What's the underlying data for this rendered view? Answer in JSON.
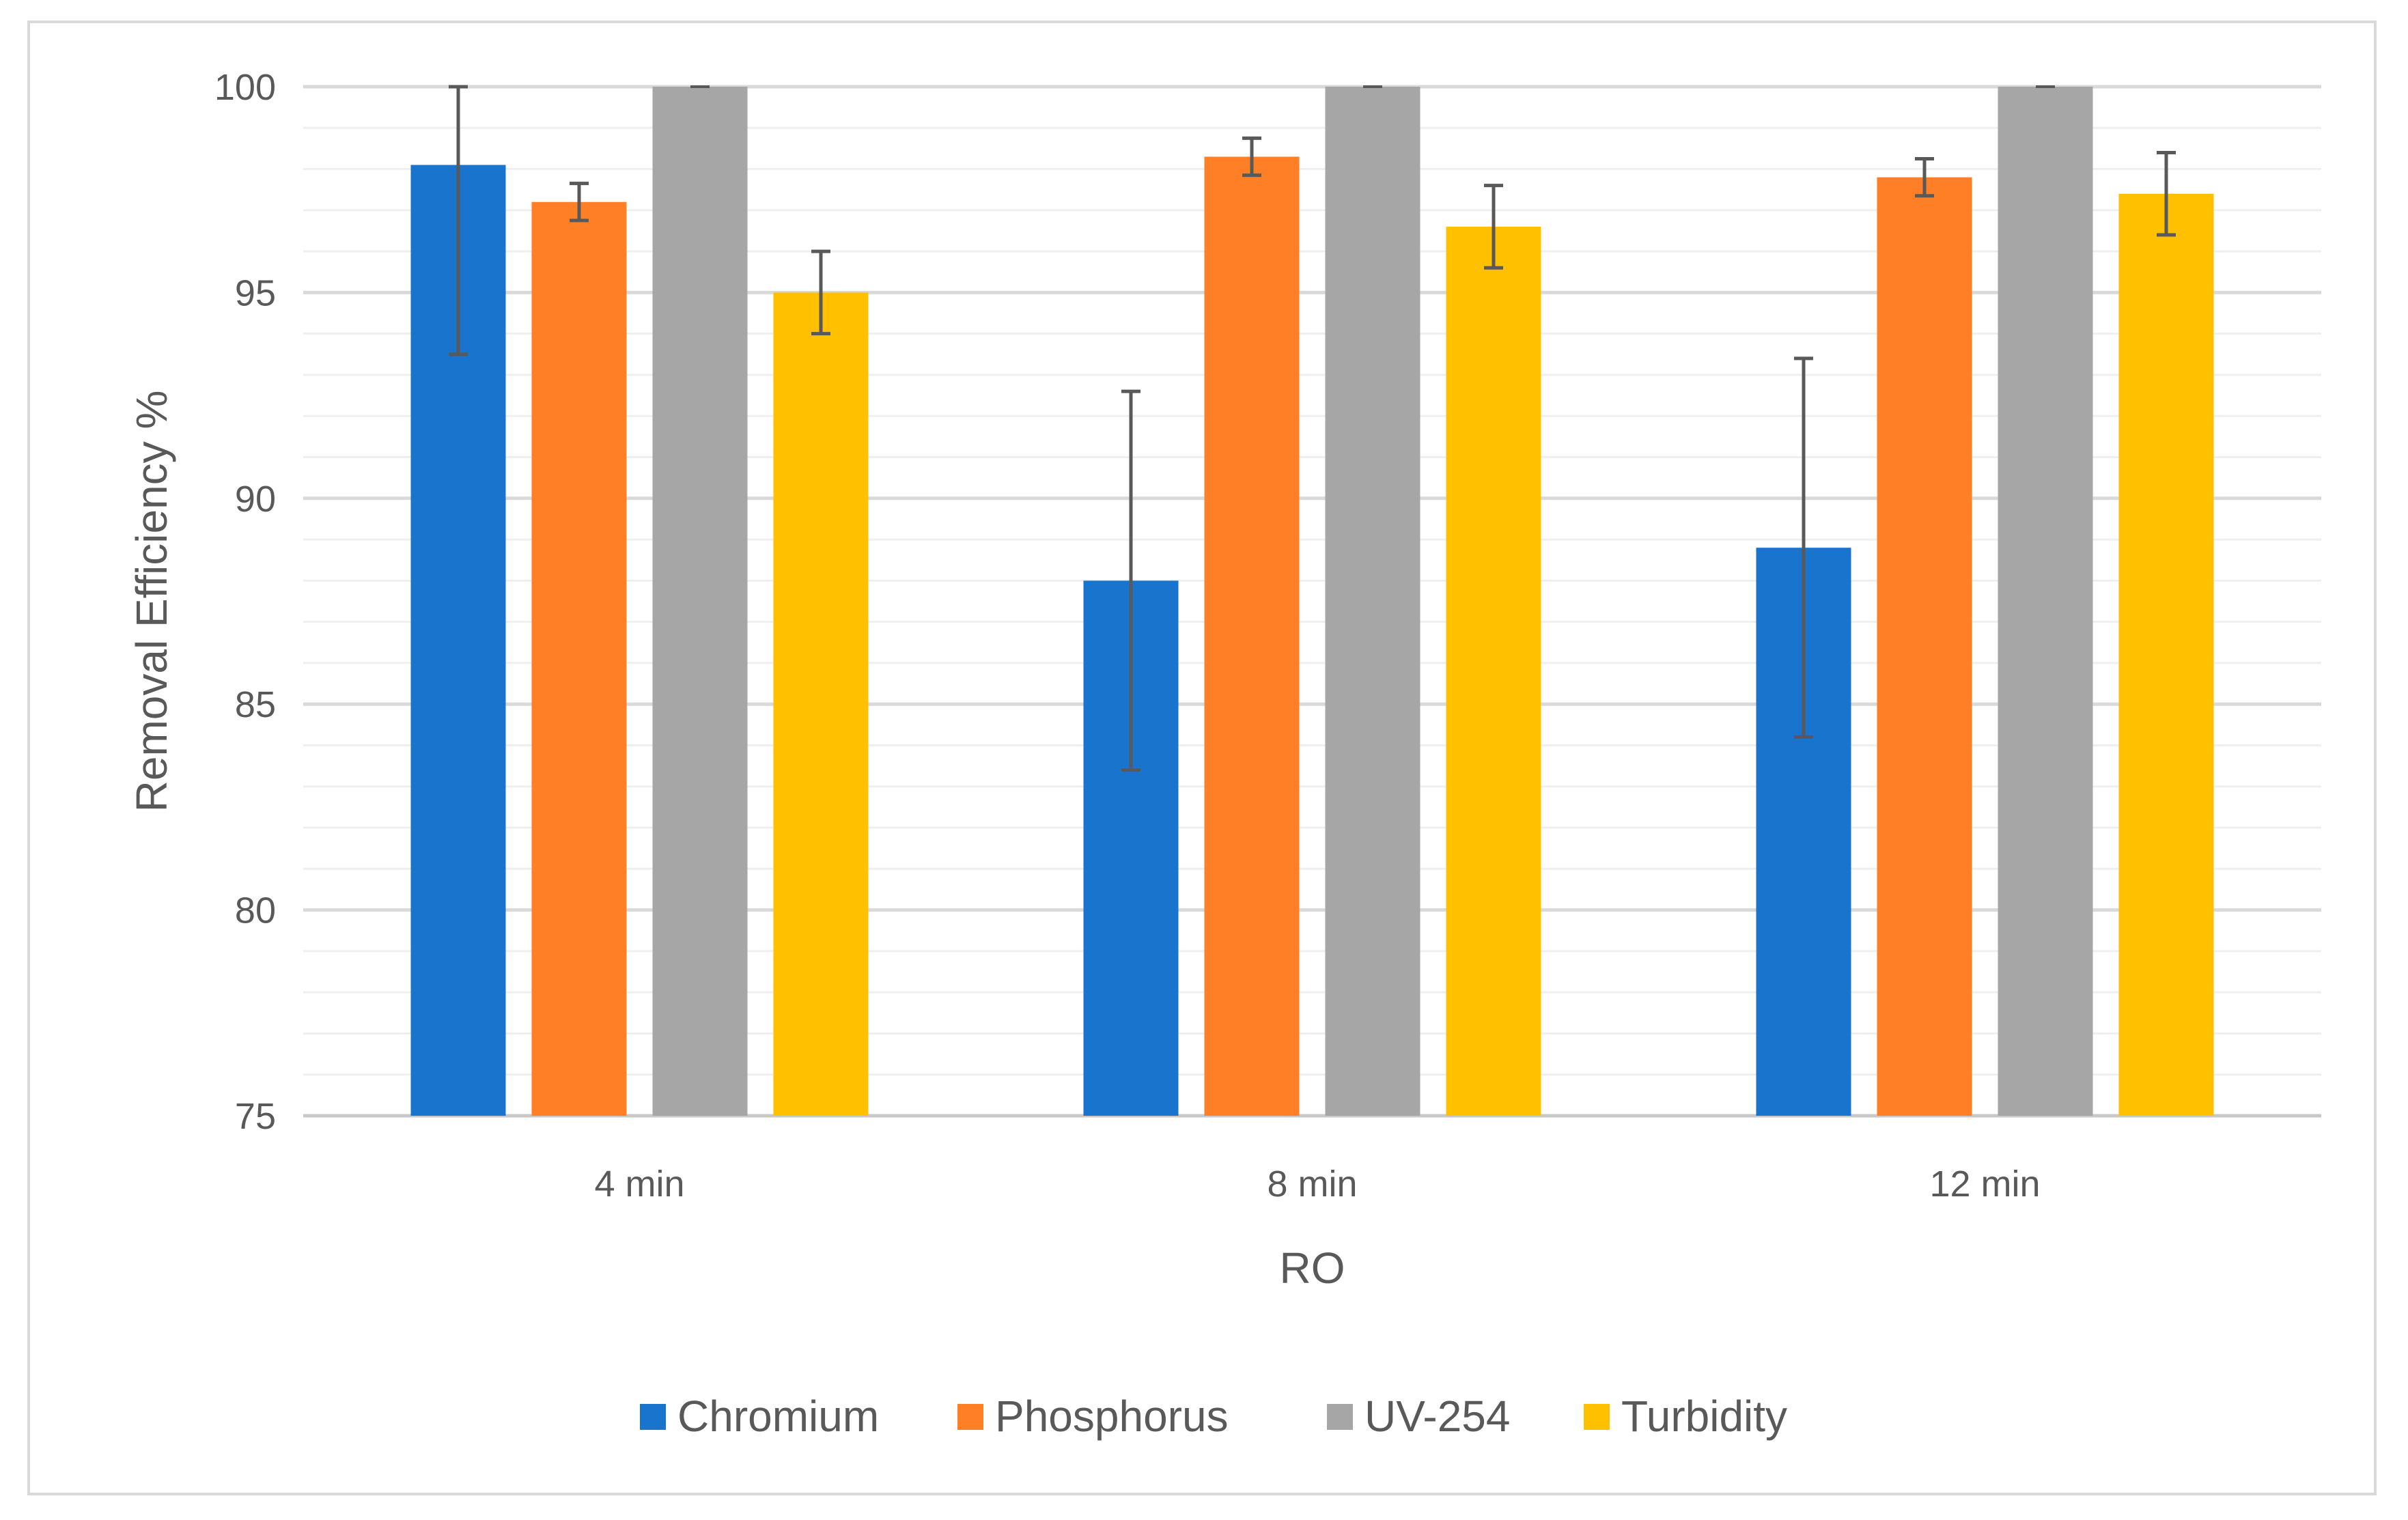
{
  "chart_data": {
    "type": "bar",
    "title": "",
    "xlabel": "RO",
    "ylabel": "Removal Efficiency %",
    "categories": [
      "4 min",
      "8 min",
      "12 min"
    ],
    "ylim": [
      75,
      100
    ],
    "major_ticks": [
      75,
      80,
      85,
      90,
      95,
      100
    ],
    "minor_step": 1,
    "grid": true,
    "legend_position": "bottom-center",
    "series": [
      {
        "name": "Chromium",
        "color": "#1874CD",
        "values": [
          98.1,
          88.0,
          88.8
        ],
        "errors": [
          4.6,
          4.6,
          4.6
        ]
      },
      {
        "name": "Phosphorus",
        "color": "#FF7F27",
        "values": [
          97.2,
          98.3,
          97.8
        ],
        "errors": [
          0.45,
          0.45,
          0.45
        ]
      },
      {
        "name": "UV-254",
        "color": "#A6A6A6",
        "values": [
          100,
          100,
          100
        ],
        "errors": [
          0,
          0,
          0
        ]
      },
      {
        "name": "Turbidity",
        "color": "#FFC000",
        "values": [
          95.0,
          96.6,
          97.4
        ],
        "errors": [
          1.0,
          1.0,
          1.0
        ]
      }
    ]
  }
}
